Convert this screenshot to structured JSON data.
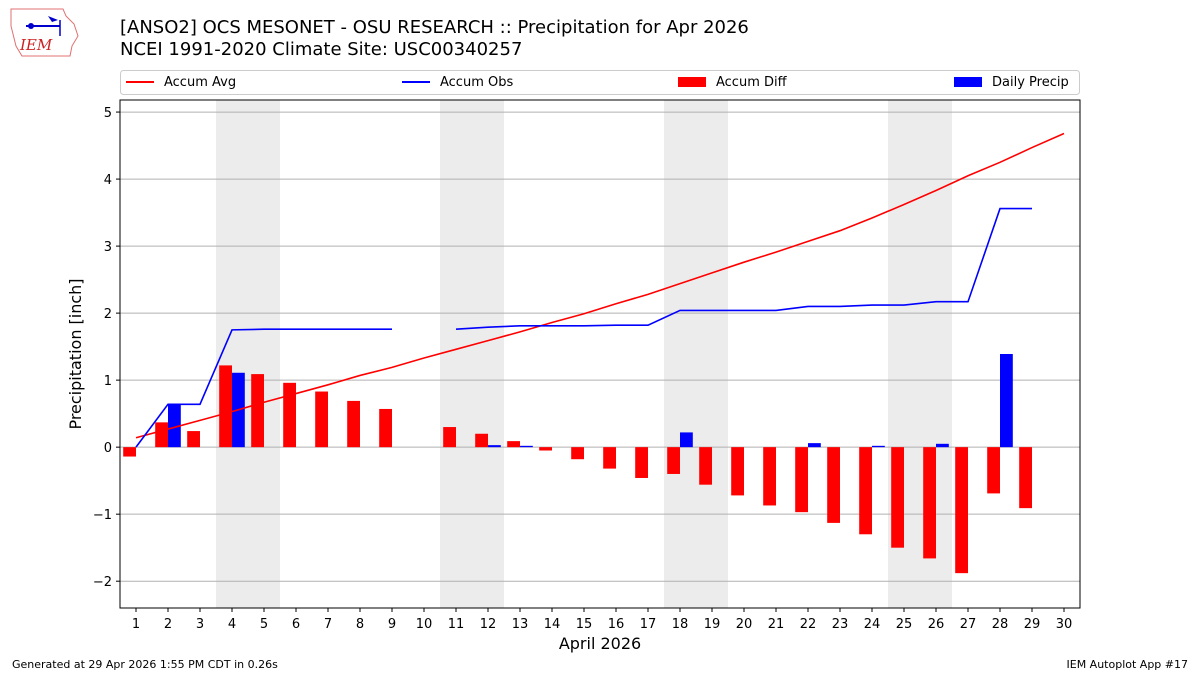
{
  "header": {
    "title_line1": "[ANSO2] OCS MESONET - OSU RESEARCH :: Precipitation for Apr 2026",
    "title_line2": "NCEI 1991-2020 Climate Site: USC00340257",
    "logo_text": "IEM"
  },
  "footer": {
    "generated": "Generated at 29 Apr 2026 1:55 PM CDT in 0.26s",
    "app": "IEM Autoplot App #17"
  },
  "chart_data": {
    "type": "bar",
    "title": "[ANSO2] OCS MESONET - OSU RESEARCH :: Precipitation for Apr 2026",
    "xlabel": "April 2026",
    "ylabel": "Precipitation [inch]",
    "xlim": [
      0.5,
      30.5
    ],
    "ylim": [
      -2.4,
      5.18
    ],
    "yticks": [
      -2,
      -1,
      0,
      1,
      2,
      3,
      4,
      5
    ],
    "ytick_labels": [
      "−2",
      "−1",
      "0",
      "1",
      "2",
      "3",
      "4",
      "5"
    ],
    "x": [
      1,
      2,
      3,
      4,
      5,
      6,
      7,
      8,
      9,
      10,
      11,
      12,
      13,
      14,
      15,
      16,
      17,
      18,
      19,
      20,
      21,
      22,
      23,
      24,
      25,
      26,
      27,
      28,
      29,
      30
    ],
    "xtick_labels": [
      "1",
      "2",
      "3",
      "4",
      "5",
      "6",
      "7",
      "8",
      "9",
      "10",
      "11",
      "12",
      "13",
      "14",
      "15",
      "16",
      "17",
      "18",
      "19",
      "20",
      "21",
      "22",
      "23",
      "24",
      "25",
      "26",
      "27",
      "28",
      "29",
      "30"
    ],
    "grid": "y",
    "legend_position": "top",
    "weekend_shading": [
      [
        3.5,
        5.5
      ],
      [
        10.5,
        12.5
      ],
      [
        17.5,
        19.5
      ],
      [
        24.5,
        26.5
      ]
    ],
    "series": [
      {
        "name": "Accum Avg",
        "kind": "line",
        "color": "#ff0000",
        "values": [
          0.14,
          0.27,
          0.4,
          0.53,
          0.67,
          0.8,
          0.93,
          1.07,
          1.19,
          1.33,
          1.46,
          1.59,
          1.72,
          1.86,
          1.99,
          2.14,
          2.28,
          2.44,
          2.6,
          2.76,
          2.91,
          3.07,
          3.23,
          3.42,
          3.62,
          3.83,
          4.05,
          4.25,
          4.47,
          4.68
        ]
      },
      {
        "name": "Accum Obs",
        "kind": "line",
        "color": "#0000ff",
        "values": [
          0.0,
          0.64,
          0.64,
          1.75,
          1.76,
          1.76,
          1.76,
          1.76,
          1.76,
          null,
          1.76,
          1.79,
          1.81,
          1.81,
          1.81,
          1.82,
          1.82,
          2.04,
          2.04,
          2.04,
          2.04,
          2.1,
          2.1,
          2.12,
          2.12,
          2.17,
          2.17,
          3.56,
          3.56,
          null
        ]
      },
      {
        "name": "Accum Diff",
        "kind": "bar",
        "color": "#ff0000",
        "offset": -0.2,
        "values": [
          -0.14,
          0.37,
          0.24,
          1.22,
          1.09,
          0.96,
          0.83,
          0.69,
          0.57,
          null,
          0.3,
          0.2,
          0.09,
          -0.05,
          -0.18,
          -0.32,
          -0.46,
          -0.4,
          -0.56,
          -0.72,
          -0.87,
          -0.97,
          -1.13,
          -1.3,
          -1.5,
          -1.66,
          -1.88,
          -0.69,
          -0.91,
          null
        ]
      },
      {
        "name": "Daily Precip",
        "kind": "bar",
        "color": "#0000ff",
        "offset": 0.2,
        "values": [
          0,
          0.64,
          0,
          1.11,
          0,
          0,
          0,
          0,
          0,
          null,
          0,
          0.03,
          0.02,
          0,
          0,
          0,
          0,
          0.22,
          0,
          0,
          0,
          0.06,
          0,
          0.02,
          0,
          0.05,
          0,
          1.39,
          0,
          null
        ]
      }
    ]
  }
}
